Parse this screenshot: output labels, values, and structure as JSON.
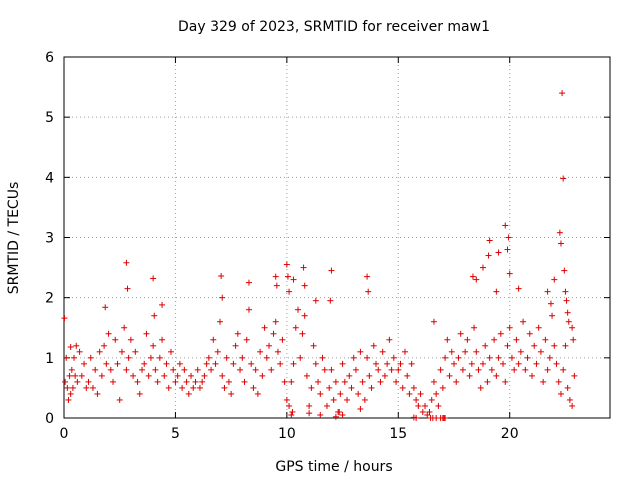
{
  "chart_data": {
    "type": "scatter",
    "title": "Day 329 of 2023, SRMTID for receiver maw1",
    "xlabel": "GPS time / hours",
    "ylabel": "SRMTID / TECUs",
    "xlim": [
      0,
      24.5
    ],
    "ylim": [
      0,
      6
    ],
    "xticks": [
      0,
      5,
      10,
      15,
      20
    ],
    "yticks": [
      0,
      1,
      2,
      3,
      4,
      5,
      6
    ],
    "grid": true,
    "marker": "+",
    "series_color": "#dd0000",
    "series": [
      {
        "name": "SRMTID",
        "x": [
          0.05,
          0.1,
          0.15,
          0.2,
          0.25,
          0.3,
          0.35,
          0.4,
          0.45,
          0.5,
          0.6,
          0.7,
          0.8,
          0.9,
          1.0,
          1.1,
          1.2,
          1.3,
          1.4,
          1.5,
          1.6,
          1.7,
          1.8,
          1.9,
          2.0,
          2.1,
          2.2,
          2.3,
          2.4,
          2.5,
          2.6,
          2.7,
          2.8,
          2.9,
          3.0,
          3.1,
          3.2,
          3.3,
          3.4,
          3.5,
          3.6,
          3.7,
          3.8,
          3.9,
          4.0,
          4.1,
          4.2,
          4.3,
          4.4,
          4.5,
          4.6,
          4.7,
          4.8,
          4.9,
          5.0,
          5.1,
          5.2,
          5.3,
          5.4,
          5.5,
          5.6,
          5.7,
          5.8,
          5.9,
          6.0,
          6.1,
          6.2,
          6.3,
          6.4,
          6.5,
          6.6,
          6.7,
          6.8,
          6.9,
          7.0,
          7.1,
          7.2,
          7.3,
          7.4,
          7.5,
          7.6,
          7.7,
          7.8,
          7.9,
          8.0,
          8.1,
          8.2,
          8.3,
          8.4,
          8.5,
          8.6,
          8.7,
          8.8,
          8.9,
          9.0,
          9.1,
          9.2,
          9.3,
          9.4,
          9.5,
          9.6,
          9.7,
          9.8,
          9.9,
          10.0,
          10.1,
          10.2,
          10.3,
          10.4,
          10.5,
          10.6,
          10.7,
          10.8,
          10.9,
          11.0,
          11.1,
          11.2,
          11.3,
          11.4,
          11.5,
          11.6,
          11.7,
          11.8,
          11.9,
          12.0,
          12.1,
          12.2,
          12.3,
          12.4,
          12.5,
          12.6,
          12.7,
          12.8,
          12.9,
          13.0,
          13.1,
          13.2,
          13.3,
          13.4,
          13.5,
          13.6,
          13.7,
          13.8,
          13.9,
          14.0,
          14.1,
          14.2,
          14.3,
          14.4,
          14.5,
          14.6,
          14.7,
          14.8,
          14.9,
          15.0,
          15.1,
          15.2,
          15.3,
          15.4,
          15.5,
          15.6,
          15.7,
          15.8,
          15.9,
          16.0,
          16.1,
          16.2,
          16.3,
          16.4,
          16.5,
          16.6,
          16.7,
          16.8,
          16.9,
          17.0,
          17.1,
          17.2,
          17.3,
          17.4,
          17.5,
          17.6,
          17.7,
          17.8,
          17.9,
          18.0,
          18.1,
          18.2,
          18.3,
          18.4,
          18.5,
          18.6,
          18.7,
          18.8,
          18.9,
          19.0,
          19.1,
          19.2,
          19.3,
          19.4,
          19.5,
          19.6,
          19.7,
          19.8,
          19.9,
          20.0,
          20.1,
          20.2,
          20.3,
          20.4,
          20.5,
          20.6,
          20.7,
          20.8,
          20.9,
          21.0,
          21.1,
          21.2,
          21.3,
          21.4,
          21.5,
          21.6,
          21.7,
          21.8,
          21.9,
          22.0,
          22.1,
          22.2,
          22.3,
          22.4,
          22.5,
          22.6,
          22.7,
          22.8,
          22.9,
          0.02,
          0.3,
          0.55,
          1.85,
          2.8,
          2.85,
          4.0,
          4.05,
          4.4,
          7.05,
          7.1,
          8.3,
          9.5,
          9.55,
          10.0,
          10.05,
          10.1,
          10.3,
          10.75,
          10.8,
          11.3,
          11.95,
          12.0,
          13.6,
          13.65,
          16.6,
          18.35,
          18.5,
          18.8,
          19.05,
          19.1,
          19.4,
          19.5,
          19.8,
          19.9,
          19.95,
          20.0,
          20.4,
          21.7,
          21.85,
          22.0,
          22.25,
          22.3,
          22.35,
          22.4,
          22.45,
          22.5,
          22.55,
          22.6,
          22.65,
          22.8,
          22.85,
          10.2,
          10.25,
          11.0,
          11.5,
          12.2,
          12.35,
          12.5,
          13.3,
          15.7,
          15.8,
          16.45,
          16.55,
          16.7,
          16.9,
          17.0,
          17.05,
          17.1
        ],
        "y": [
          0.6,
          1.0,
          0.5,
          0.3,
          0.7,
          0.4,
          0.8,
          0.5,
          1.0,
          0.7,
          0.6,
          1.1,
          0.7,
          0.9,
          0.5,
          0.6,
          1.0,
          0.5,
          0.8,
          0.4,
          1.1,
          0.7,
          1.2,
          0.9,
          1.4,
          0.8,
          0.6,
          1.3,
          0.9,
          0.3,
          1.1,
          1.5,
          0.8,
          1.0,
          1.3,
          0.7,
          1.1,
          0.6,
          0.4,
          0.8,
          0.9,
          1.4,
          0.7,
          1.0,
          1.2,
          0.8,
          0.6,
          1.0,
          1.3,
          0.7,
          0.9,
          0.5,
          1.1,
          0.8,
          0.6,
          0.7,
          0.9,
          0.5,
          0.8,
          0.6,
          0.4,
          0.7,
          0.5,
          0.6,
          0.8,
          0.5,
          0.6,
          0.7,
          0.9,
          1.0,
          0.8,
          1.3,
          0.9,
          1.1,
          1.6,
          0.7,
          0.5,
          1.0,
          0.6,
          0.4,
          0.9,
          1.2,
          1.4,
          0.8,
          1.0,
          0.6,
          1.3,
          1.8,
          0.9,
          0.5,
          0.8,
          0.4,
          1.1,
          0.7,
          1.5,
          1.0,
          1.2,
          0.8,
          1.4,
          1.6,
          1.1,
          0.9,
          1.3,
          0.6,
          0.3,
          0.2,
          0.6,
          0.9,
          1.5,
          1.8,
          1.0,
          1.4,
          1.7,
          0.7,
          0.2,
          0.5,
          1.2,
          0.9,
          0.6,
          0.4,
          1.0,
          0.8,
          0.2,
          0.5,
          0.8,
          0.3,
          0.6,
          0.1,
          0.4,
          0.9,
          0.6,
          0.3,
          0.7,
          0.5,
          1.0,
          0.8,
          0.4,
          1.1,
          0.6,
          0.3,
          1.0,
          0.7,
          0.5,
          1.2,
          0.9,
          0.8,
          0.6,
          1.1,
          0.7,
          0.9,
          1.3,
          0.8,
          1.0,
          0.6,
          0.8,
          0.9,
          0.5,
          1.1,
          0.7,
          0.4,
          0.9,
          0.5,
          0.3,
          0.2,
          0.4,
          0.1,
          0.2,
          0.05,
          0.1,
          0.3,
          0.6,
          0.4,
          0.2,
          0.8,
          0.5,
          1.0,
          1.3,
          0.7,
          1.1,
          0.9,
          0.6,
          1.0,
          1.4,
          0.8,
          1.1,
          1.3,
          0.7,
          0.9,
          1.5,
          1.1,
          0.8,
          0.5,
          0.9,
          1.2,
          0.6,
          1.0,
          0.8,
          1.3,
          0.7,
          1.0,
          1.4,
          0.9,
          0.6,
          1.2,
          1.5,
          1.0,
          0.8,
          1.3,
          0.9,
          1.1,
          1.6,
          0.8,
          1.0,
          1.4,
          0.7,
          1.2,
          0.9,
          1.5,
          1.1,
          0.6,
          1.3,
          0.8,
          1.0,
          1.7,
          1.2,
          0.9,
          0.6,
          0.4,
          0.8,
          1.2,
          0.5,
          0.3,
          0.2,
          0.7,
          1.66,
          1.18,
          1.2,
          1.84,
          2.58,
          2.15,
          2.32,
          1.7,
          1.88,
          2.36,
          2.0,
          2.25,
          2.35,
          2.2,
          2.55,
          2.35,
          2.1,
          2.3,
          2.5,
          2.2,
          1.95,
          1.95,
          2.45,
          2.35,
          2.1,
          1.6,
          2.35,
          2.3,
          2.5,
          2.7,
          2.95,
          2.1,
          2.75,
          3.2,
          2.8,
          3.0,
          2.4,
          2.15,
          2.1,
          1.9,
          2.3,
          3.08,
          2.9,
          5.4,
          3.98,
          2.45,
          2.1,
          1.95,
          1.75,
          1.6,
          1.5,
          1.3,
          0.05,
          0.1,
          0.08,
          0.05,
          0.02,
          0.1,
          0.05,
          0.15,
          0.01,
          0.0,
          0.0,
          0.0,
          0.0,
          0.0,
          0.0,
          0.0,
          0.0
        ]
      }
    ]
  }
}
